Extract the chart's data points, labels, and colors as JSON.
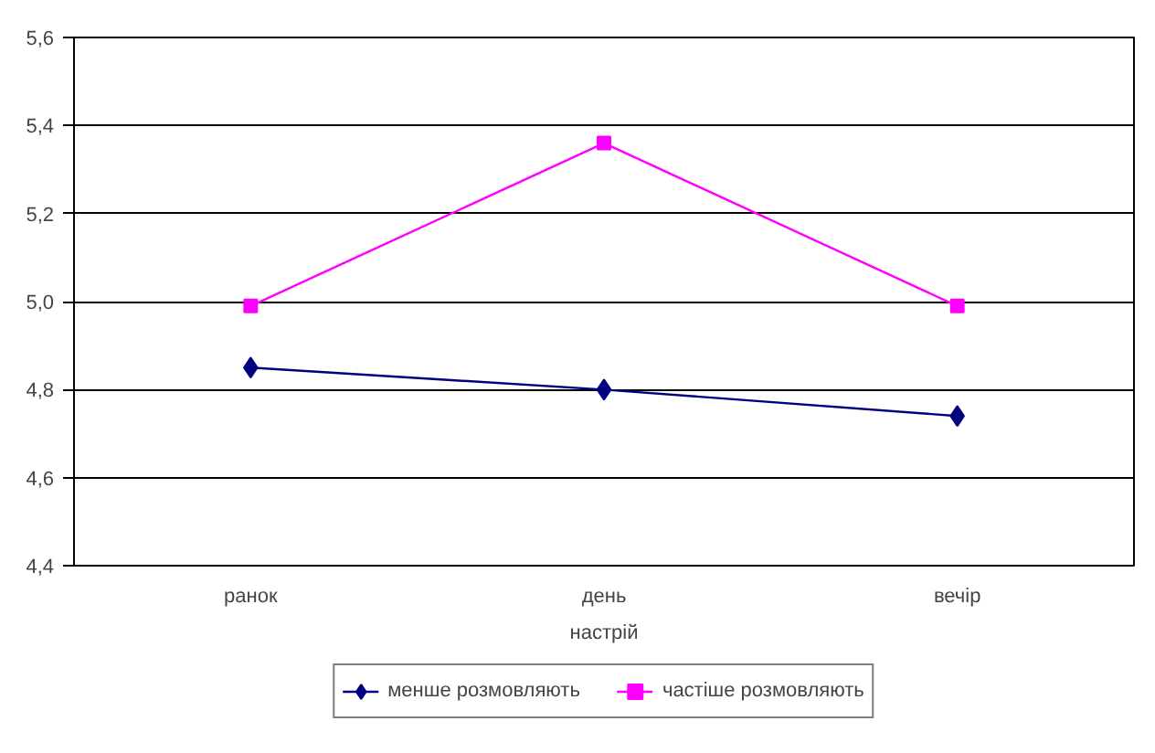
{
  "chart_data": {
    "type": "line",
    "xlabel": "настрій",
    "categories": [
      "ранок",
      "день",
      "вечір"
    ],
    "series": [
      {
        "name": "менше розмовляють",
        "color": "#000080",
        "marker": "diamond",
        "values": [
          4.85,
          4.8,
          4.74
        ]
      },
      {
        "name": "частіше розмовляють",
        "color": "#ff00ff",
        "marker": "square",
        "values": [
          4.99,
          5.36,
          4.99
        ]
      }
    ],
    "ylim": [
      4.4,
      5.6
    ],
    "yticks": [
      {
        "value": 4.4,
        "label": "4,4"
      },
      {
        "value": 4.6,
        "label": "4,6"
      },
      {
        "value": 4.8,
        "label": "4,8"
      },
      {
        "value": 5.0,
        "label": "5,0"
      },
      {
        "value": 5.2,
        "label": "5,2"
      },
      {
        "value": 5.4,
        "label": "5,4"
      },
      {
        "value": 5.6,
        "label": "5,6"
      }
    ],
    "grid": "y",
    "legend": "bottom",
    "line_style": "solid"
  }
}
